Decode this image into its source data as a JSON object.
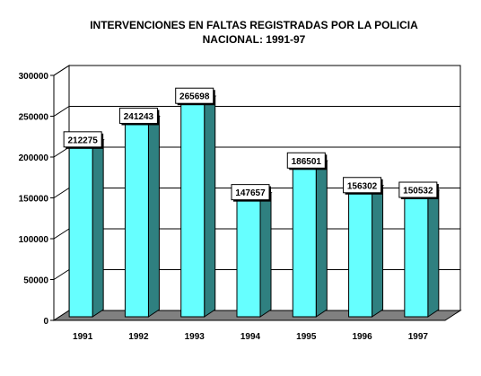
{
  "chart_data": {
    "type": "bar",
    "title_lines": [
      "INTERVENCIONES EN FALTAS REGISTRADAS POR LA POLICIA",
      "NACIONAL: 1991-97"
    ],
    "xlabel": "",
    "ylabel": "",
    "categories": [
      "1991",
      "1992",
      "1993",
      "1994",
      "1995",
      "1996",
      "1997"
    ],
    "values": [
      212275,
      241243,
      265698,
      147657,
      186501,
      156302,
      150532
    ],
    "ylim": [
      0,
      300000
    ],
    "yticks": [
      0,
      50000,
      100000,
      150000,
      200000,
      250000,
      300000
    ],
    "grid": true,
    "legend": "none",
    "style": "3d-bar",
    "colors": {
      "bar_front": "#66ffff",
      "bar_side": "#2f8080",
      "bar_top": "#88ffff",
      "floor": "#808080",
      "wall": "#ffffff",
      "gridline": "#000000"
    }
  }
}
